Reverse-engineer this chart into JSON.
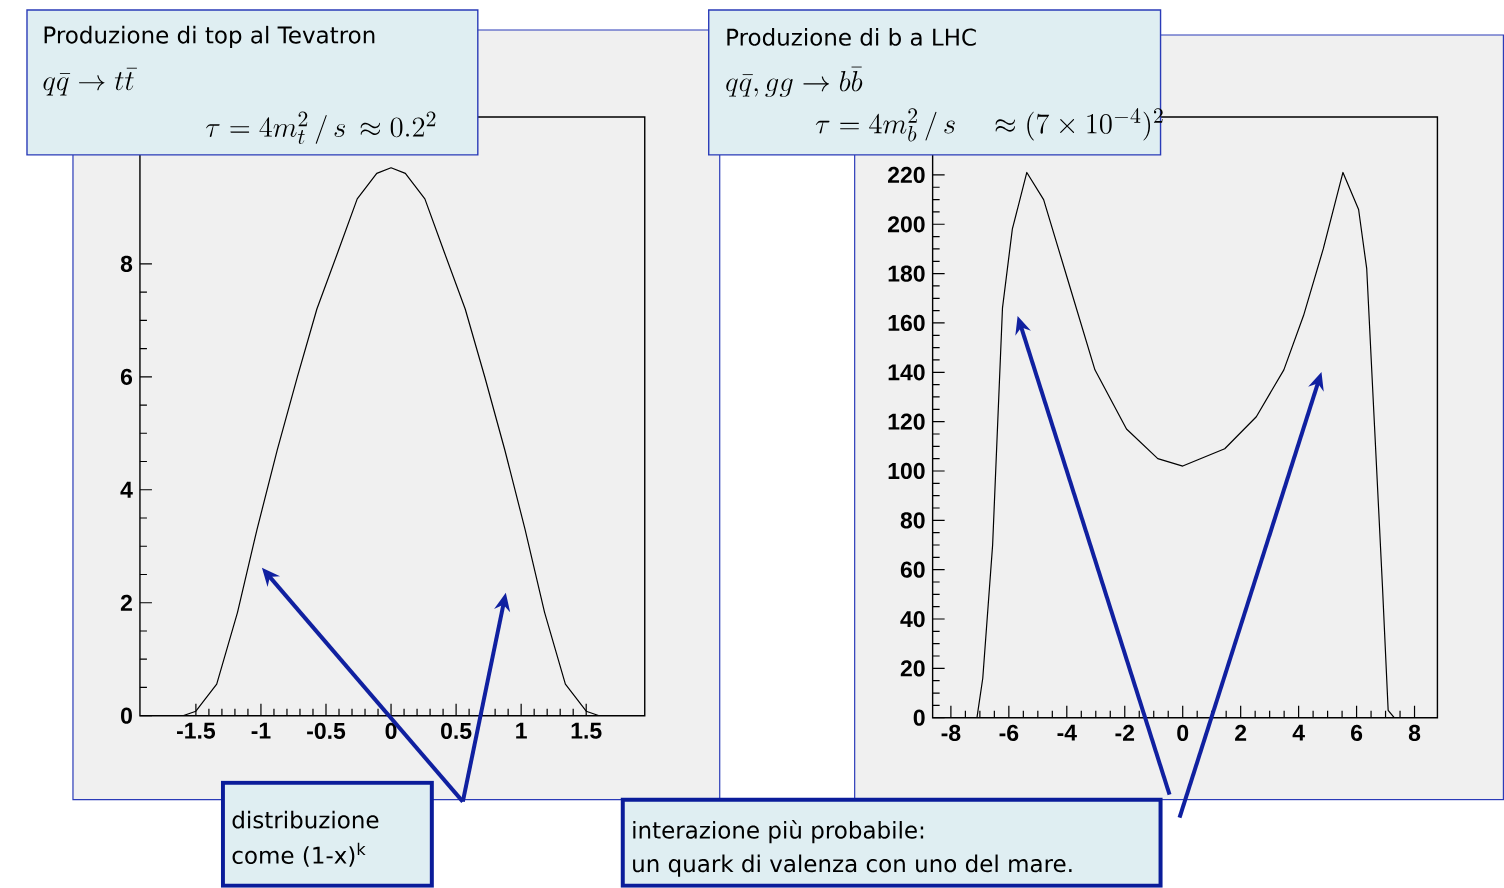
{
  "chart_data": [
    {
      "type": "line",
      "title": "Produzione di top al Tevatron",
      "subtitle": "q\\bar{q} \\rightarrow t\\bar{t}",
      "annotations": [
        "\\tau = 4m_t^2 \\, / \\, s \\, \\approx 0.2^2",
        "distribuzione",
        "come (1-x)$^{k}$"
      ],
      "x": [
        -1.6,
        -1.5,
        -1.34,
        -1.18,
        -1.03,
        -0.875,
        -0.72,
        -0.57,
        -0.41,
        -0.26,
        -0.11,
        0,
        0.11,
        0.26,
        0.41,
        0.57,
        0.72,
        0.875,
        1.03,
        1.18,
        1.34,
        1.5,
        1.6
      ],
      "series": [
        {
          "color": "#000000",
          "values": [
            0,
            0.08,
            0.56,
            1.83,
            3.3,
            4.7,
            6.0,
            7.2,
            8.2,
            9.15,
            9.6,
            9.7,
            9.6,
            9.15,
            8.2,
            7.2,
            6.0,
            4.7,
            3.3,
            1.83,
            0.56,
            0.08,
            0
          ]
        }
      ],
      "xlim": [
        -1.93,
        1.95
      ],
      "ylim": [
        0,
        10.6
      ],
      "xticks": [
        -1.5,
        -1,
        -0.5,
        0,
        0.5,
        1,
        1.5
      ],
      "yticks": [
        0,
        2,
        4,
        6,
        8
      ]
    },
    {
      "type": "line",
      "title": "Produzione di b a LHC",
      "subtitle": "q\\bar{q}, gg \\rightarrow b\\bar{b}",
      "annotations": [
        "\\tau = 4m_b^2 \\, / \\, s \\quad \\approx (7\\times10^{-4})^2",
        "interazione più probabile:",
        "un quark di valenza con uno del mare."
      ],
      "x": [
        -7.1,
        -6.9,
        -6.56,
        -6.22,
        -5.88,
        -5.38,
        -4.8,
        -3.98,
        -3.03,
        -1.94,
        -0.86,
        0,
        1.45,
        2.54,
        3.49,
        4.17,
        4.85,
        5.53,
        6.07,
        6.35,
        6.62,
        6.89,
        7.09,
        7.3
      ],
      "series": [
        {
          "color": "#000000",
          "values": [
            0,
            16,
            70,
            166,
            198,
            221,
            210,
            178,
            141,
            117,
            105,
            102,
            109,
            122,
            141,
            163,
            190,
            221,
            206,
            182,
            118,
            54,
            3,
            0
          ]
        }
      ],
      "xlim": [
        -8.63,
        8.79
      ],
      "ylim": [
        0,
        243.5
      ],
      "xticks": [
        -8,
        -6,
        -4,
        -2,
        0,
        2,
        4,
        6,
        8
      ],
      "yticks": [
        0,
        20,
        40,
        60,
        80,
        100,
        120,
        140,
        160,
        180,
        200,
        220
      ]
    }
  ]
}
